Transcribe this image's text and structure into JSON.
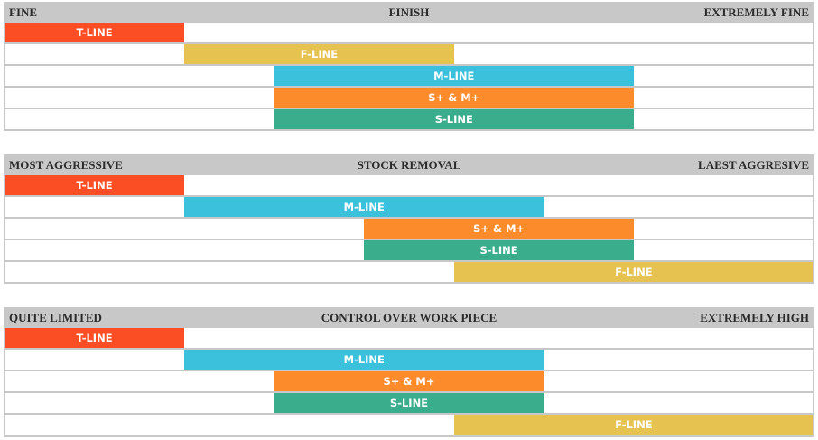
{
  "colors": {
    "T-LINE": "#fc4e24",
    "F-LINE": "#e6c350",
    "M-LINE": "#3bc1db",
    "S+ & M+": "#fc8b2c",
    "S-LINE": "#3aad8c"
  },
  "chart_data": [
    {
      "type": "bar",
      "header": {
        "left": "FINE",
        "center": "FINISH",
        "right": "EXTREMELY FINE"
      },
      "scale": [
        0,
        9
      ],
      "bars": [
        {
          "label": "T-LINE",
          "start": 0,
          "end": 2
        },
        {
          "label": "F-LINE",
          "start": 2,
          "end": 5
        },
        {
          "label": "M-LINE",
          "start": 3,
          "end": 7
        },
        {
          "label": "S+ & M+",
          "start": 3,
          "end": 7
        },
        {
          "label": "S-LINE",
          "start": 3,
          "end": 7
        }
      ]
    },
    {
      "type": "bar",
      "header": {
        "left": "MOST AGGRESSIVE",
        "center": "STOCK REMOVAL",
        "right": "LAEST AGGRESIVE"
      },
      "scale": [
        0,
        9
      ],
      "bars": [
        {
          "label": "T-LINE",
          "start": 0,
          "end": 2
        },
        {
          "label": "M-LINE",
          "start": 2,
          "end": 6
        },
        {
          "label": "S+ & M+",
          "start": 4,
          "end": 7
        },
        {
          "label": "S-LINE",
          "start": 4,
          "end": 7
        },
        {
          "label": "F-LINE",
          "start": 5,
          "end": 9
        }
      ]
    },
    {
      "type": "bar",
      "header": {
        "left": "QUITE LIMITED",
        "center": "CONTROL OVER WORK PIECE",
        "right": "EXTREMELY HIGH"
      },
      "scale": [
        0,
        9
      ],
      "bars": [
        {
          "label": "T-LINE",
          "start": 0,
          "end": 2
        },
        {
          "label": "M-LINE",
          "start": 2,
          "end": 6
        },
        {
          "label": "S+ & M+",
          "start": 3,
          "end": 6
        },
        {
          "label": "S-LINE",
          "start": 3,
          "end": 6
        },
        {
          "label": "F-LINE",
          "start": 5,
          "end": 9
        }
      ]
    }
  ]
}
